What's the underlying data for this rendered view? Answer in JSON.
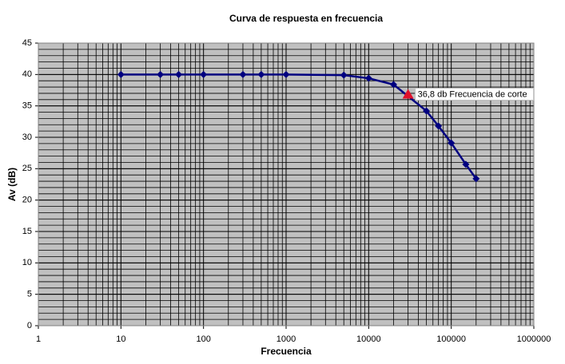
{
  "chart_data": {
    "type": "line",
    "title": "Curva de respuesta  en frecuencia",
    "x_label": "Frecuencia",
    "y_label": "Av (dB)",
    "x": [
      10,
      30,
      50,
      100,
      300,
      500,
      1000,
      5000,
      10000,
      20000,
      50000,
      70000,
      100000,
      150000,
      200000
    ],
    "values": [
      40,
      40,
      40,
      40,
      40,
      40,
      40,
      39.9,
      39.4,
      38.4,
      34.2,
      31.8,
      29.1,
      25.7,
      23.4
    ],
    "color": "#000080",
    "annotation": {
      "x": 30000,
      "y": 36.8,
      "label": "36,8 db Frecuencia de corte",
      "color": "#e0102a"
    },
    "xlim": [
      1,
      1000000
    ],
    "xticks": [
      1,
      10,
      100,
      1000,
      10000,
      100000,
      1000000
    ],
    "x_log": true,
    "ylim": [
      0,
      45
    ],
    "yticks": [
      0,
      5,
      10,
      15,
      20,
      25,
      30,
      35,
      40,
      45
    ],
    "grid": true,
    "minor_grid": true,
    "plot_background": "#c0c0c0"
  }
}
